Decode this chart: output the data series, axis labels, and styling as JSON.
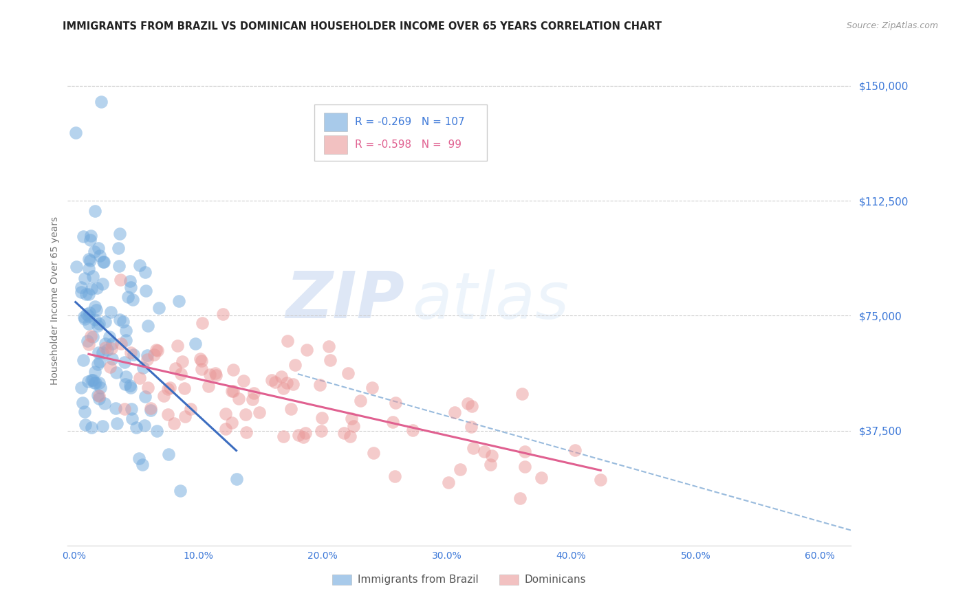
{
  "title": "IMMIGRANTS FROM BRAZIL VS DOMINICAN HOUSEHOLDER INCOME OVER 65 YEARS CORRELATION CHART",
  "source": "Source: ZipAtlas.com",
  "ylabel": "Householder Income Over 65 years",
  "xlabel_ticks": [
    "0.0%",
    "10.0%",
    "20.0%",
    "30.0%",
    "40.0%",
    "50.0%",
    "60.0%"
  ],
  "xlabel_vals": [
    0.0,
    0.1,
    0.2,
    0.3,
    0.4,
    0.5,
    0.6
  ],
  "ytick_labels": [
    "$37,500",
    "$75,000",
    "$112,500",
    "$150,000"
  ],
  "ytick_vals": [
    37500,
    75000,
    112500,
    150000
  ],
  "ylim": [
    0,
    160000
  ],
  "xlim": [
    -0.005,
    0.625
  ],
  "brazil_color": "#6fa8dc",
  "dominican_color": "#ea9999",
  "brazil_R": -0.269,
  "brazil_N": 107,
  "dominican_R": -0.598,
  "dominican_N": 99,
  "legend_label_brazil": "Immigrants from Brazil",
  "legend_label_dominican": "Dominicans",
  "watermark_zip": "ZIP",
  "watermark_atlas": "atlas",
  "title_fontsize": 11,
  "source_fontsize": 9,
  "tick_label_color": "#3c78d8",
  "ylabel_color": "#777777",
  "legend_R_color_brazil": "#3c78d8",
  "legend_R_color_dominican": "#e06090",
  "brazil_line_color": "#3c6dc0",
  "dominican_line_color": "#e06090",
  "dashed_line_color": "#99bbdd",
  "grid_color": "#cccccc",
  "background_color": "#ffffff"
}
